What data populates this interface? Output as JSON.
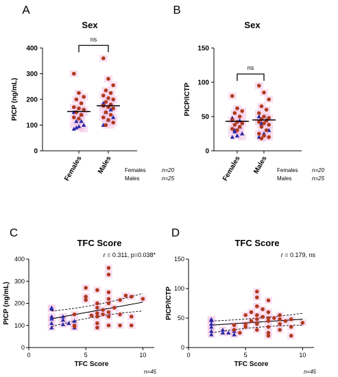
{
  "chart_data": [
    {
      "panel": "A",
      "type": "scatter",
      "title": "Sex",
      "ylabel": "PICP (ng/mL)",
      "ylim": [
        0,
        400
      ],
      "yticks": [
        0,
        100,
        200,
        300,
        400
      ],
      "categories": [
        "Females",
        "Males"
      ],
      "significance": "ns",
      "n_labels": [
        {
          "group": "Females",
          "n": "n=20"
        },
        {
          "group": "Males",
          "n": "n=25"
        }
      ],
      "medians": [
        153,
        175
      ],
      "series": [
        {
          "category": "Females",
          "red": [
            300,
            225,
            210,
            200,
            185,
            170,
            165,
            160,
            150,
            140,
            130,
            125
          ],
          "blue": [
            150,
            140,
            115,
            100,
            95,
            85,
            115,
            90
          ]
        },
        {
          "category": "Males",
          "red": [
            360,
            280,
            255,
            235,
            225,
            215,
            205,
            200,
            190,
            180,
            175,
            170,
            165,
            150,
            140,
            130,
            120,
            110,
            100
          ],
          "blue": [
            185,
            160,
            150,
            130,
            120,
            100
          ]
        }
      ]
    },
    {
      "panel": "B",
      "type": "scatter",
      "title": "Sex",
      "ylabel": "PICP/ICTP",
      "ylim": [
        0,
        150
      ],
      "yticks": [
        0,
        50,
        100,
        150
      ],
      "categories": [
        "Females",
        "Males"
      ],
      "significance": "ns",
      "n_labels": [
        {
          "group": "Females",
          "n": "n=20"
        },
        {
          "group": "Males",
          "n": "n=25"
        }
      ],
      "medians": [
        43,
        45
      ],
      "series": [
        {
          "category": "Females",
          "red": [
            80,
            62,
            58,
            55,
            50,
            45,
            42,
            40,
            38,
            35,
            32,
            30
          ],
          "blue": [
            48,
            44,
            30,
            25,
            22,
            20,
            35,
            28
          ]
        },
        {
          "category": "Males",
          "red": [
            95,
            85,
            75,
            65,
            60,
            55,
            50,
            48,
            46,
            44,
            42,
            40,
            38,
            35,
            30,
            25,
            22,
            20,
            18
          ],
          "blue": [
            50,
            45,
            40,
            30,
            25,
            20
          ]
        }
      ]
    },
    {
      "panel": "C",
      "type": "scatter",
      "title": "TFC Score",
      "xlabel": "TFC Score",
      "ylabel": "PICP (ng/mL)",
      "xlim": [
        0,
        11
      ],
      "ylim": [
        0,
        400
      ],
      "xticks": [
        0,
        5,
        10
      ],
      "yticks": [
        0,
        100,
        200,
        300,
        400
      ],
      "annotation_r": "r",
      "annotation_rest": " = 0.311, p=0.038*",
      "n_label": "n=45",
      "fit": {
        "x1": 2,
        "y1": 130,
        "x2": 10,
        "y2": 205
      },
      "ci_upper": [
        [
          2,
          165
        ],
        [
          6,
          185
        ],
        [
          10,
          245
        ]
      ],
      "ci_lower": [
        [
          2,
          95
        ],
        [
          6,
          150
        ],
        [
          10,
          165
        ]
      ],
      "blue": [
        [
          2,
          180
        ],
        [
          2,
          175
        ],
        [
          2,
          140
        ],
        [
          2,
          130
        ],
        [
          2,
          110
        ],
        [
          2,
          90
        ],
        [
          3,
          140
        ],
        [
          3,
          125
        ],
        [
          3,
          105
        ],
        [
          3.5,
          110
        ],
        [
          4,
          120
        ],
        [
          4,
          90
        ]
      ],
      "red": [
        [
          4,
          150
        ],
        [
          4,
          100
        ],
        [
          4,
          95
        ],
        [
          5,
          270
        ],
        [
          5,
          230
        ],
        [
          5,
          215
        ],
        [
          5.5,
          145
        ],
        [
          6,
          200
        ],
        [
          6,
          180
        ],
        [
          6,
          155
        ],
        [
          6,
          140
        ],
        [
          6,
          110
        ],
        [
          6,
          90
        ],
        [
          6.5,
          170
        ],
        [
          6.5,
          150
        ],
        [
          7,
          360
        ],
        [
          7,
          330
        ],
        [
          7,
          250
        ],
        [
          7,
          220
        ],
        [
          7,
          200
        ],
        [
          7,
          160
        ],
        [
          7,
          140
        ],
        [
          7.5,
          180
        ],
        [
          8,
          215
        ],
        [
          8,
          150
        ],
        [
          8,
          100
        ],
        [
          8.5,
          235
        ],
        [
          9,
          140
        ],
        [
          9,
          230
        ],
        [
          9,
          100
        ],
        [
          10,
          220
        ],
        [
          6,
          260
        ],
        [
          7,
          100
        ]
      ]
    },
    {
      "panel": "D",
      "type": "scatter",
      "title": "TFC Score",
      "xlabel": "TFC Score",
      "ylabel": "PICP/ICTP",
      "xlim": [
        0,
        11
      ],
      "ylim": [
        0,
        150
      ],
      "xticks": [
        0,
        5,
        10
      ],
      "yticks": [
        0,
        50,
        100,
        150
      ],
      "annotation_r": "r",
      "annotation_rest": " = 0.179, ns",
      "n_label": "n=45",
      "fit": {
        "x1": 2,
        "y1": 38,
        "x2": 10,
        "y2": 48
      },
      "ci_upper": [
        [
          2,
          45
        ],
        [
          6,
          48
        ],
        [
          10,
          58
        ]
      ],
      "ci_lower": [
        [
          2,
          25
        ],
        [
          6,
          37
        ],
        [
          10,
          38
        ]
      ],
      "blue": [
        [
          2,
          48
        ],
        [
          2,
          46
        ],
        [
          2,
          40
        ],
        [
          2,
          35
        ],
        [
          2,
          28
        ],
        [
          2,
          22
        ],
        [
          3,
          30
        ],
        [
          3,
          25
        ],
        [
          3.5,
          25
        ],
        [
          4,
          28
        ],
        [
          4,
          22
        ]
      ],
      "red": [
        [
          4,
          38
        ],
        [
          4,
          30
        ],
        [
          4.5,
          25
        ],
        [
          5,
          55
        ],
        [
          5,
          40
        ],
        [
          5,
          35
        ],
        [
          5.5,
          60
        ],
        [
          5.5,
          45
        ],
        [
          6,
          95
        ],
        [
          6,
          85
        ],
        [
          6,
          70
        ],
        [
          6,
          55
        ],
        [
          6,
          48
        ],
        [
          6,
          40
        ],
        [
          6,
          30
        ],
        [
          6.5,
          52
        ],
        [
          7,
          80
        ],
        [
          7,
          60
        ],
        [
          7,
          50
        ],
        [
          7,
          45
        ],
        [
          7,
          35
        ],
        [
          7,
          25
        ],
        [
          7.5,
          50
        ],
        [
          8,
          55
        ],
        [
          8,
          40
        ],
        [
          8,
          30
        ],
        [
          8.5,
          45
        ],
        [
          9,
          35
        ],
        [
          9,
          20
        ],
        [
          9,
          48
        ],
        [
          10,
          42
        ],
        [
          6.5,
          65
        ],
        [
          7,
          20
        ],
        [
          8,
          48
        ]
      ]
    }
  ]
}
